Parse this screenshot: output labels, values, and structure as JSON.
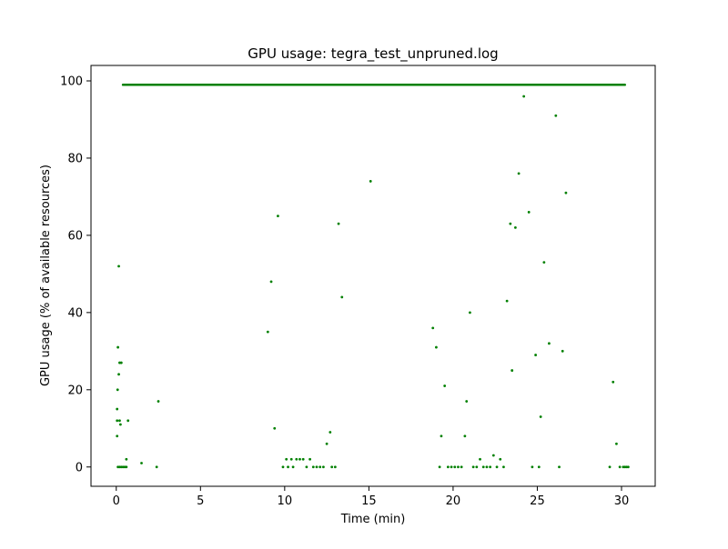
{
  "chart_data": {
    "type": "scatter",
    "title": "GPU usage: tegra_test_unpruned.log",
    "xlabel": "Time (min)",
    "ylabel": "GPU usage (% of available resources)",
    "xlim": [
      -1.5,
      32.0
    ],
    "ylim": [
      -5,
      104
    ],
    "xticks": [
      0,
      5,
      10,
      15,
      20,
      25,
      30
    ],
    "yticks": [
      0,
      20,
      40,
      60,
      80,
      100
    ],
    "grid": false,
    "legend": "none",
    "colors": {
      "points": "#008000"
    },
    "series": [
      {
        "baseline_band": {
          "x_start": 0.4,
          "x_end": 30.2,
          "y": 99
        },
        "points": [
          {
            "x": 0.05,
            "y": 8
          },
          {
            "x": 0.05,
            "y": 12
          },
          {
            "x": 0.05,
            "y": 15
          },
          {
            "x": 0.08,
            "y": 20
          },
          {
            "x": 0.1,
            "y": 31
          },
          {
            "x": 0.15,
            "y": 52
          },
          {
            "x": 0.15,
            "y": 24
          },
          {
            "x": 0.2,
            "y": 27
          },
          {
            "x": 0.3,
            "y": 27
          },
          {
            "x": 0.2,
            "y": 12
          },
          {
            "x": 0.25,
            "y": 11
          },
          {
            "x": 0.6,
            "y": 2
          },
          {
            "x": 0.7,
            "y": 12
          },
          {
            "x": 0.1,
            "y": 0
          },
          {
            "x": 0.2,
            "y": 0
          },
          {
            "x": 0.3,
            "y": 0
          },
          {
            "x": 0.4,
            "y": 0
          },
          {
            "x": 0.5,
            "y": 0
          },
          {
            "x": 0.6,
            "y": 0
          },
          {
            "x": 1.5,
            "y": 1
          },
          {
            "x": 2.4,
            "y": 0
          },
          {
            "x": 2.5,
            "y": 17
          },
          {
            "x": 9.0,
            "y": 35
          },
          {
            "x": 9.2,
            "y": 48
          },
          {
            "x": 9.4,
            "y": 10
          },
          {
            "x": 9.6,
            "y": 65
          },
          {
            "x": 9.9,
            "y": 0
          },
          {
            "x": 10.1,
            "y": 2
          },
          {
            "x": 10.2,
            "y": 0
          },
          {
            "x": 10.4,
            "y": 2
          },
          {
            "x": 10.5,
            "y": 0
          },
          {
            "x": 10.7,
            "y": 2
          },
          {
            "x": 10.9,
            "y": 2
          },
          {
            "x": 11.1,
            "y": 2
          },
          {
            "x": 11.3,
            "y": 0
          },
          {
            "x": 11.5,
            "y": 2
          },
          {
            "x": 11.7,
            "y": 0
          },
          {
            "x": 11.9,
            "y": 0
          },
          {
            "x": 12.1,
            "y": 0
          },
          {
            "x": 12.3,
            "y": 0
          },
          {
            "x": 12.5,
            "y": 6
          },
          {
            "x": 12.7,
            "y": 9
          },
          {
            "x": 12.8,
            "y": 0
          },
          {
            "x": 13.0,
            "y": 0
          },
          {
            "x": 13.2,
            "y": 63
          },
          {
            "x": 13.4,
            "y": 44
          },
          {
            "x": 15.1,
            "y": 74
          },
          {
            "x": 18.8,
            "y": 36
          },
          {
            "x": 19.0,
            "y": 31
          },
          {
            "x": 19.2,
            "y": 0
          },
          {
            "x": 19.3,
            "y": 8
          },
          {
            "x": 19.5,
            "y": 21
          },
          {
            "x": 19.7,
            "y": 0
          },
          {
            "x": 19.9,
            "y": 0
          },
          {
            "x": 20.1,
            "y": 0
          },
          {
            "x": 20.3,
            "y": 0
          },
          {
            "x": 20.5,
            "y": 0
          },
          {
            "x": 20.7,
            "y": 8
          },
          {
            "x": 20.8,
            "y": 17
          },
          {
            "x": 21.0,
            "y": 40
          },
          {
            "x": 21.2,
            "y": 0
          },
          {
            "x": 21.4,
            "y": 0
          },
          {
            "x": 21.6,
            "y": 2
          },
          {
            "x": 21.8,
            "y": 0
          },
          {
            "x": 22.0,
            "y": 0
          },
          {
            "x": 22.2,
            "y": 0
          },
          {
            "x": 22.4,
            "y": 3
          },
          {
            "x": 22.6,
            "y": 0
          },
          {
            "x": 22.8,
            "y": 2
          },
          {
            "x": 23.0,
            "y": 0
          },
          {
            "x": 23.2,
            "y": 43
          },
          {
            "x": 23.4,
            "y": 63
          },
          {
            "x": 23.5,
            "y": 25
          },
          {
            "x": 23.7,
            "y": 62
          },
          {
            "x": 23.9,
            "y": 76
          },
          {
            "x": 24.2,
            "y": 96
          },
          {
            "x": 24.5,
            "y": 66
          },
          {
            "x": 24.7,
            "y": 0
          },
          {
            "x": 24.9,
            "y": 29
          },
          {
            "x": 25.1,
            "y": 0
          },
          {
            "x": 25.2,
            "y": 13
          },
          {
            "x": 25.4,
            "y": 53
          },
          {
            "x": 25.7,
            "y": 32
          },
          {
            "x": 26.1,
            "y": 91
          },
          {
            "x": 26.3,
            "y": 0
          },
          {
            "x": 26.5,
            "y": 30
          },
          {
            "x": 26.7,
            "y": 71
          },
          {
            "x": 29.3,
            "y": 0
          },
          {
            "x": 29.5,
            "y": 22
          },
          {
            "x": 29.7,
            "y": 6
          },
          {
            "x": 29.9,
            "y": 0
          },
          {
            "x": 30.1,
            "y": 0
          },
          {
            "x": 30.2,
            "y": 0
          },
          {
            "x": 30.3,
            "y": 0
          },
          {
            "x": 30.4,
            "y": 0
          }
        ]
      }
    ]
  }
}
